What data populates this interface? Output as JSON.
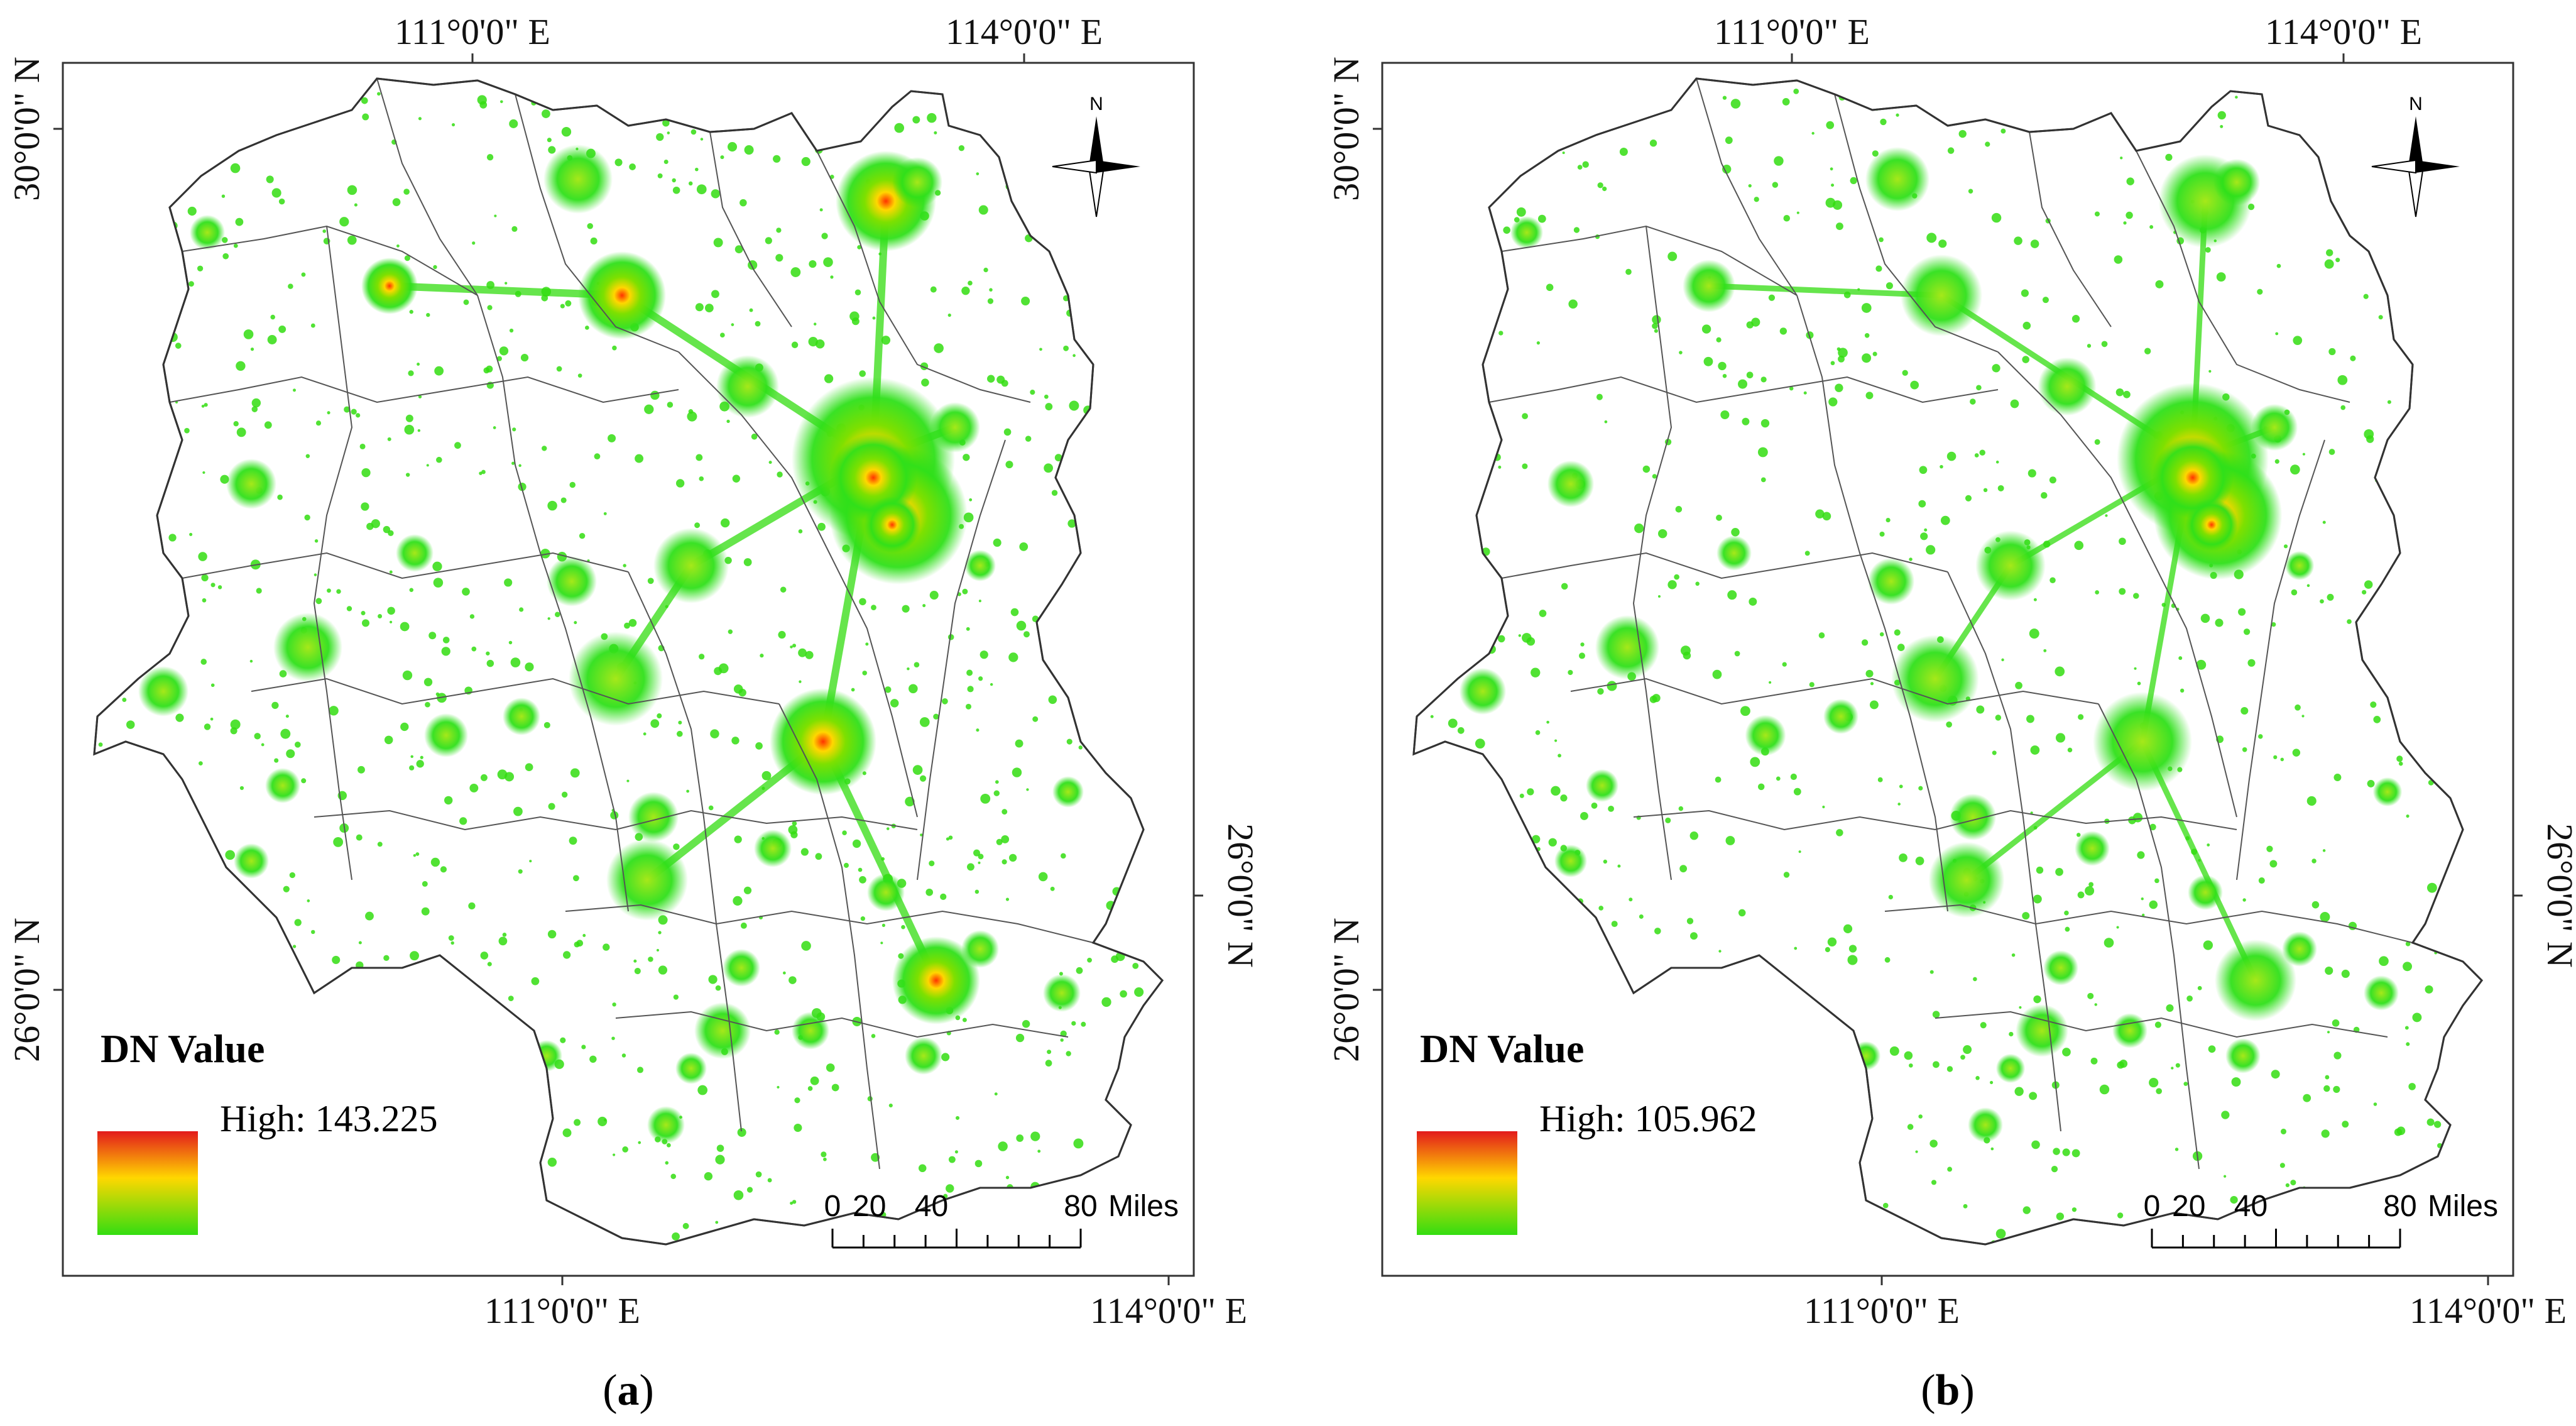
{
  "panels": [
    {
      "id": "a",
      "label": "(a)",
      "label_letter": "a",
      "legend_title": "DN Value",
      "legend_high": "High: 143.225",
      "max_dn": 143.225
    },
    {
      "id": "b",
      "label": "(b)",
      "label_letter": "b",
      "legend_title": "DN Value",
      "legend_high": "High: 105.962",
      "max_dn": 105.962
    }
  ],
  "graticule": {
    "top_left_lon": "111°0'0\" E",
    "top_right_lon": "114°0'0\" E",
    "bottom_left_lon": "111°0'0\" E",
    "bottom_right_lon": "114°0'0\" E",
    "left_top_lat": "30°0'0\" N",
    "left_bottom_lat": "26°0'0\" N",
    "right_lat": "26°0'0\" N"
  },
  "scale_bar": {
    "ticks": [
      "0",
      "20",
      "40",
      "80"
    ],
    "unit": "Miles"
  },
  "north_arrow": {
    "label": "N",
    "icon": "north-arrow-icon"
  },
  "colors": {
    "high": "#e31a1c",
    "mid": "#ffd700",
    "low": "#33dd11",
    "boundary": "#444444"
  }
}
